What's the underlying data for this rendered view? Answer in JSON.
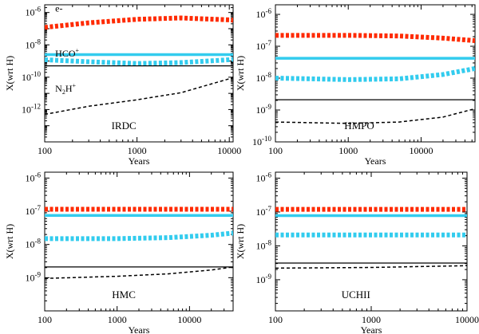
{
  "chart_data": [
    {
      "type": "line",
      "title": "",
      "panel_label": "IRDC",
      "xlabel": "Years",
      "ylabel": "X(wrt H)",
      "x_scale": "log",
      "y_scale": "log",
      "xlim": [
        100,
        11000
      ],
      "ylim": [
        1e-14,
        3e-06
      ],
      "x_ticks": [
        {
          "v": 100,
          "label": "100"
        },
        {
          "v": 1000,
          "label": "1000"
        },
        {
          "v": 10000,
          "label": "10000"
        }
      ],
      "y_ticks": [
        {
          "v": 1e-06,
          "b": "10",
          "e": "-6"
        },
        {
          "v": 1e-08,
          "b": "10",
          "e": "-8"
        },
        {
          "v": 1e-10,
          "b": "10",
          "e": "-10"
        },
        {
          "v": 1e-12,
          "b": "10",
          "e": "-12"
        }
      ],
      "series": [
        {
          "name": "e-",
          "color": "#ff2a00",
          "style": "thick-dash",
          "x": [
            100,
            300,
            1000,
            3000,
            10000,
            11000
          ],
          "y": [
            1.2e-07,
            2.3e-07,
            3.8e-07,
            4.6e-07,
            3.5e-07,
            3.3e-07
          ]
        },
        {
          "name": "HCO+",
          "color": "#33ccee",
          "style": "thick-solid",
          "x": [
            100,
            11000
          ],
          "y": [
            2.5e-09,
            2.5e-09
          ]
        },
        {
          "name": "",
          "color": "#33ccee",
          "style": "thick-dash",
          "x": [
            100,
            300,
            1000,
            3000,
            10000,
            11000
          ],
          "y": [
            1.2e-09,
            9e-10,
            7e-10,
            8e-10,
            1.2e-09,
            1.3e-09
          ]
        },
        {
          "name": "",
          "color": "#000000",
          "style": "thin-solid",
          "x": [
            100,
            11000
          ],
          "y": [
            5e-10,
            5e-10
          ]
        },
        {
          "name": "N2H+",
          "color": "#000000",
          "style": "thin-dash",
          "x": [
            100,
            300,
            1000,
            3000,
            10000,
            11000
          ],
          "y": [
            5e-13,
            1.6e-12,
            4e-12,
            1.1e-11,
            8e-11,
            1e-10
          ]
        }
      ],
      "annotations": [
        {
          "x": 130,
          "y": 1.8e-06,
          "text": "e-",
          "sub": "",
          "sup": ""
        },
        {
          "x": 130,
          "y": 3e-09,
          "text": "HCO",
          "sub": "",
          "sup": "+"
        },
        {
          "x": 130,
          "y": 2e-11,
          "text": "N",
          "sub": "2",
          "text2": "H",
          "sup": "+"
        }
      ]
    },
    {
      "type": "line",
      "title": "",
      "panel_label": "HMPO",
      "xlabel": "Years",
      "ylabel": "X(wrt H)",
      "x_scale": "log",
      "y_scale": "log",
      "xlim": [
        100,
        55000
      ],
      "ylim": [
        1e-10,
        2e-06
      ],
      "x_ticks": [
        {
          "v": 100,
          "label": "100"
        },
        {
          "v": 1000,
          "label": "1000"
        },
        {
          "v": 10000,
          "label": "10000"
        }
      ],
      "y_ticks": [
        {
          "v": 1e-06,
          "b": "10",
          "e": "-6"
        },
        {
          "v": 1e-07,
          "b": "10",
          "e": "-7"
        },
        {
          "v": 1e-08,
          "b": "10",
          "e": "-8"
        },
        {
          "v": 1e-09,
          "b": "10",
          "e": "-9"
        },
        {
          "v": 1e-10,
          "b": "10",
          "e": "-10"
        }
      ],
      "series": [
        {
          "name": "",
          "color": "#ff2a00",
          "style": "thick-dash",
          "x": [
            100,
            1000,
            5000,
            20000,
            55000
          ],
          "y": [
            2.2e-07,
            2.2e-07,
            2.1e-07,
            1.8e-07,
            1.5e-07
          ]
        },
        {
          "name": "",
          "color": "#33ccee",
          "style": "thick-solid",
          "x": [
            100,
            55000
          ],
          "y": [
            4.2e-08,
            4.2e-08
          ]
        },
        {
          "name": "",
          "color": "#33ccee",
          "style": "thick-dash",
          "x": [
            100,
            1000,
            5000,
            20000,
            55000
          ],
          "y": [
            1e-08,
            9e-09,
            9.5e-09,
            1.3e-08,
            2e-08
          ]
        },
        {
          "name": "",
          "color": "#000000",
          "style": "thin-solid",
          "x": [
            100,
            55000
          ],
          "y": [
            2.1e-09,
            2.1e-09
          ]
        },
        {
          "name": "",
          "color": "#000000",
          "style": "thin-dash",
          "x": [
            100,
            1000,
            5000,
            20000,
            55000
          ],
          "y": [
            4.2e-10,
            3.8e-10,
            4.2e-10,
            6e-10,
            1.1e-09
          ]
        }
      ],
      "annotations": []
    },
    {
      "type": "line",
      "title": "",
      "panel_label": "HMC",
      "xlabel": "Years",
      "ylabel": "X(wrt H)",
      "x_scale": "log",
      "y_scale": "log",
      "xlim": [
        100,
        40000
      ],
      "ylim": [
        1e-10,
        1.5e-06
      ],
      "x_ticks": [
        {
          "v": 100,
          "label": "100"
        },
        {
          "v": 1000,
          "label": "1000"
        },
        {
          "v": 10000,
          "label": "10000"
        }
      ],
      "y_ticks": [
        {
          "v": 1e-06,
          "b": "10",
          "e": "-6"
        },
        {
          "v": 1e-07,
          "b": "10",
          "e": "-7"
        },
        {
          "v": 1e-08,
          "b": "10",
          "e": "-8"
        },
        {
          "v": 1e-09,
          "b": "10",
          "e": "-9"
        }
      ],
      "series": [
        {
          "name": "",
          "color": "#ff2a00",
          "style": "thick-dash",
          "x": [
            100,
            40000
          ],
          "y": [
            1.15e-07,
            1.15e-07
          ]
        },
        {
          "name": "",
          "color": "#33ccee",
          "style": "thick-solid",
          "x": [
            100,
            40000
          ],
          "y": [
            7.5e-08,
            7.5e-08
          ]
        },
        {
          "name": "",
          "color": "#33ccee",
          "style": "thick-dash",
          "x": [
            100,
            1000,
            5000,
            20000,
            40000
          ],
          "y": [
            1.5e-08,
            1.5e-08,
            1.6e-08,
            1.9e-08,
            2.2e-08
          ]
        },
        {
          "name": "",
          "color": "#000000",
          "style": "thin-solid",
          "x": [
            100,
            40000
          ],
          "y": [
            2.1e-09,
            2.1e-09
          ]
        },
        {
          "name": "",
          "color": "#000000",
          "style": "thin-dash",
          "x": [
            100,
            1000,
            5000,
            20000,
            40000
          ],
          "y": [
            9.5e-10,
            1.1e-09,
            1.3e-09,
            1.7e-09,
            2.1e-09
          ]
        }
      ],
      "annotations": []
    },
    {
      "type": "line",
      "title": "",
      "panel_label": "UCHII",
      "xlabel": "Years",
      "ylabel": "X(wrt H)",
      "x_scale": "log",
      "y_scale": "log",
      "xlim": [
        100,
        10000
      ],
      "ylim": [
        1.2e-10,
        1.5e-06
      ],
      "x_ticks": [
        {
          "v": 100,
          "label": "100"
        },
        {
          "v": 1000,
          "label": "1000"
        },
        {
          "v": 10000,
          "label": "10000"
        }
      ],
      "y_ticks": [
        {
          "v": 1e-06,
          "b": "10",
          "e": "-6"
        },
        {
          "v": 1e-07,
          "b": "10",
          "e": "-7"
        },
        {
          "v": 1e-08,
          "b": "10",
          "e": "-8"
        },
        {
          "v": 1e-09,
          "b": "10",
          "e": "-9"
        }
      ],
      "series": [
        {
          "name": "",
          "color": "#ff2a00",
          "style": "thick-dash",
          "x": [
            100,
            10000
          ],
          "y": [
            1.2e-07,
            1.2e-07
          ]
        },
        {
          "name": "",
          "color": "#33ccee",
          "style": "thick-solid",
          "x": [
            100,
            10000
          ],
          "y": [
            7.8e-08,
            7.8e-08
          ]
        },
        {
          "name": "",
          "color": "#33ccee",
          "style": "thick-dash",
          "x": [
            100,
            10000
          ],
          "y": [
            2.1e-08,
            2.1e-08
          ]
        },
        {
          "name": "",
          "color": "#000000",
          "style": "thin-solid",
          "x": [
            100,
            10000
          ],
          "y": [
            3.1e-09,
            3.1e-09
          ]
        },
        {
          "name": "",
          "color": "#000000",
          "style": "thin-dash",
          "x": [
            100,
            1000,
            10000
          ],
          "y": [
            2.2e-09,
            2.3e-09,
            2.6e-09
          ]
        }
      ],
      "annotations": []
    }
  ]
}
